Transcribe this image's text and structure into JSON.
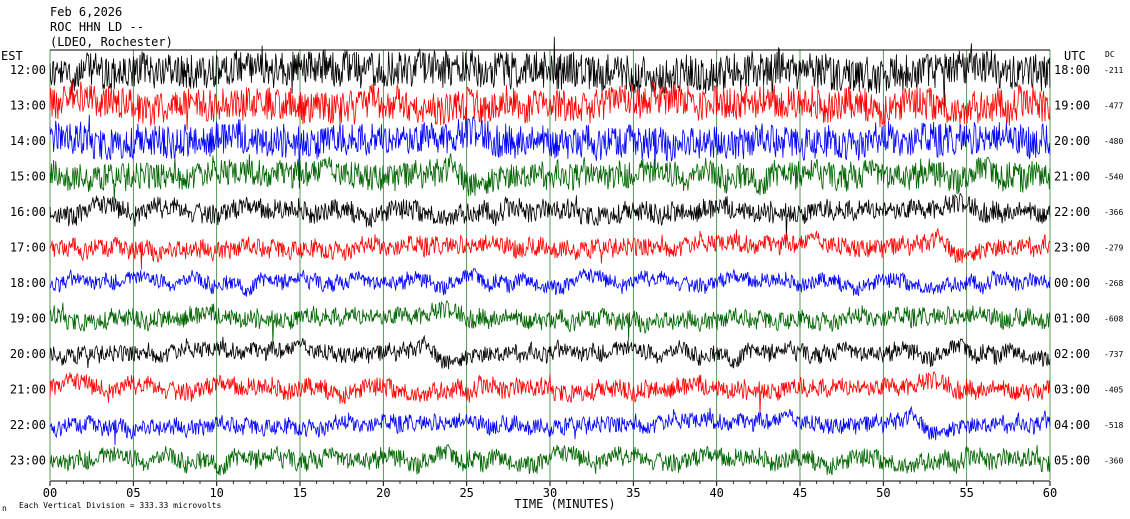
{
  "header": {
    "date": "Feb 6,2026",
    "station": "ROC HHN LD --",
    "location": "(LDEO, Rochester)",
    "left_tz": "EST",
    "right_tz": "UTC",
    "dc_label": "DC"
  },
  "footer": {
    "scale_note": "Each Vertical Division =  333.33 microvolts",
    "corner_mark": "n"
  },
  "chart_data": {
    "type": "line",
    "title": "",
    "xlabel": "TIME (MINUTES)",
    "ylabel": "",
    "xlim": [
      0,
      60
    ],
    "x_ticks": [
      "00",
      "05",
      "10",
      "15",
      "20",
      "25",
      "30",
      "35",
      "40",
      "45",
      "50",
      "55",
      "60"
    ],
    "grid": "vertical lines every 5 minutes",
    "colors_cycle": [
      "#000000",
      "#ff0000",
      "#0000ff",
      "#006400"
    ],
    "rows": [
      {
        "local": "12:00",
        "utc": "18:00",
        "dc": "-211",
        "color": "#000000",
        "amplitude": 2.0
      },
      {
        "local": "13:00",
        "utc": "19:00",
        "dc": "-477",
        "color": "#ff0000",
        "amplitude": 1.8
      },
      {
        "local": "14:00",
        "utc": "20:00",
        "dc": "-480",
        "color": "#0000ff",
        "amplitude": 1.8
      },
      {
        "local": "15:00",
        "utc": "21:00",
        "dc": "-540",
        "color": "#006400",
        "amplitude": 1.5
      },
      {
        "local": "16:00",
        "utc": "22:00",
        "dc": "-366",
        "color": "#000000",
        "amplitude": 1.1
      },
      {
        "local": "17:00",
        "utc": "23:00",
        "dc": "-279",
        "color": "#ff0000",
        "amplitude": 1.0
      },
      {
        "local": "18:00",
        "utc": "00:00",
        "dc": "-268",
        "color": "#0000ff",
        "amplitude": 0.8
      },
      {
        "local": "19:00",
        "utc": "01:00",
        "dc": "-608",
        "color": "#006400",
        "amplitude": 1.0
      },
      {
        "local": "20:00",
        "utc": "02:00",
        "dc": "-737",
        "color": "#000000",
        "amplitude": 0.9
      },
      {
        "local": "21:00",
        "utc": "03:00",
        "dc": "-405",
        "color": "#ff0000",
        "amplitude": 1.0
      },
      {
        "local": "22:00",
        "utc": "04:00",
        "dc": "-518",
        "color": "#0000ff",
        "amplitude": 0.9
      },
      {
        "local": "23:00",
        "utc": "05:00",
        "dc": "-360",
        "color": "#006400",
        "amplitude": 1.0
      }
    ]
  }
}
